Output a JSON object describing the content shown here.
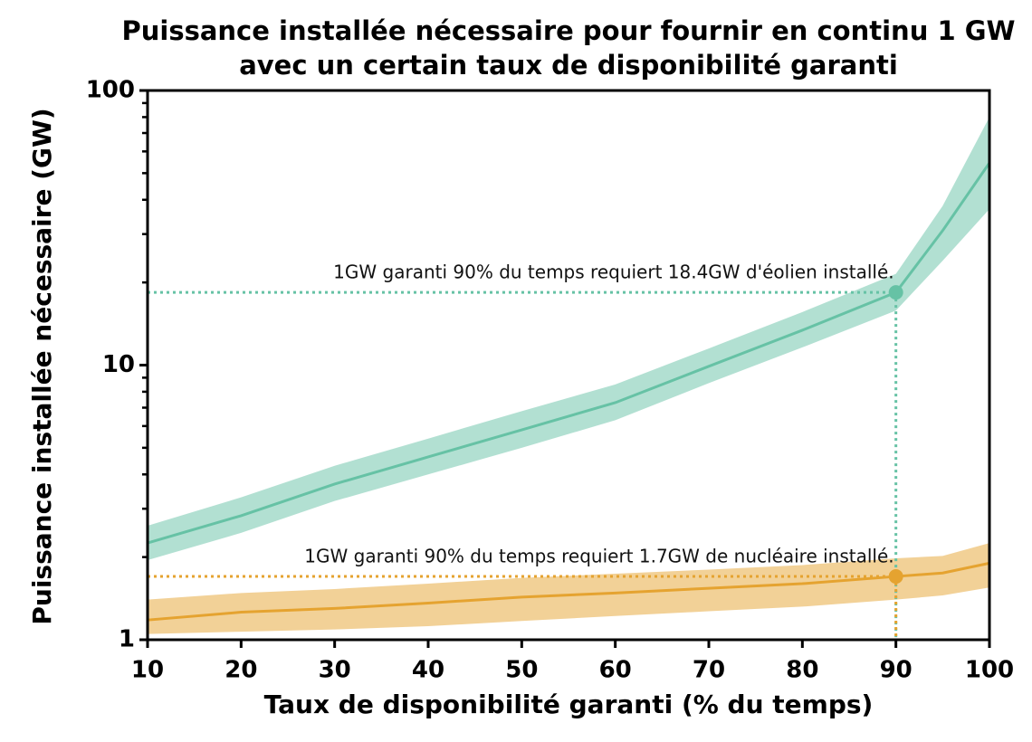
{
  "chart_data": {
    "type": "line",
    "title": [
      "Puissance installée nécessaire pour fournir en continu 1 GW",
      "avec un certain taux de disponibilité garanti"
    ],
    "x_label": "Taux de disponibilité garanti (% du temps)",
    "y_label": "Puissance installée nécessaire (GW)",
    "x": [
      10,
      20,
      30,
      40,
      50,
      60,
      70,
      80,
      90,
      95,
      100
    ],
    "series": [
      {
        "color": "#66c2a5",
        "values": [
          2.25,
          2.83,
          3.69,
          4.63,
          5.81,
          7.3,
          9.9,
          13.4,
          18.4,
          30.9,
          54.5
        ],
        "lower": [
          1.95,
          2.45,
          3.2,
          4.0,
          5.0,
          6.3,
          8.6,
          11.6,
          15.8,
          24,
          37
        ],
        "upper": [
          2.6,
          3.3,
          4.3,
          5.4,
          6.8,
          8.5,
          11.5,
          15.6,
          21.5,
          38,
          80
        ]
      },
      {
        "color": "#e5a330",
        "values": [
          1.18,
          1.26,
          1.3,
          1.36,
          1.43,
          1.48,
          1.54,
          1.6,
          1.7,
          1.75,
          1.9
        ],
        "lower": [
          1.05,
          1.07,
          1.09,
          1.12,
          1.17,
          1.22,
          1.27,
          1.32,
          1.4,
          1.45,
          1.55
        ],
        "upper": [
          1.4,
          1.48,
          1.53,
          1.6,
          1.68,
          1.74,
          1.8,
          1.87,
          1.98,
          2.02,
          2.25
        ]
      }
    ],
    "annotations": [
      {
        "text": "1GW garanti 90% du temps requiert 18.4GW d'éolien installé.",
        "x": 90,
        "y": 18.4,
        "color": "#66c2a5"
      },
      {
        "text": "1GW garanti 90% du temps requiert 1.7GW de nucléaire installé.",
        "x": 90,
        "y": 1.7,
        "color": "#e5a330"
      }
    ],
    "xlim": [
      10,
      100
    ],
    "xticks": [
      10,
      20,
      30,
      40,
      50,
      60,
      70,
      80,
      90,
      100
    ],
    "ylim": [
      1,
      100
    ],
    "yticks": [
      1,
      10,
      100
    ],
    "yticks_minor": [
      2,
      3,
      4,
      5,
      6,
      7,
      8,
      9,
      20,
      30,
      40,
      50,
      60,
      70,
      80,
      90
    ],
    "yscale": "log",
    "band_opacity": 0.5
  }
}
